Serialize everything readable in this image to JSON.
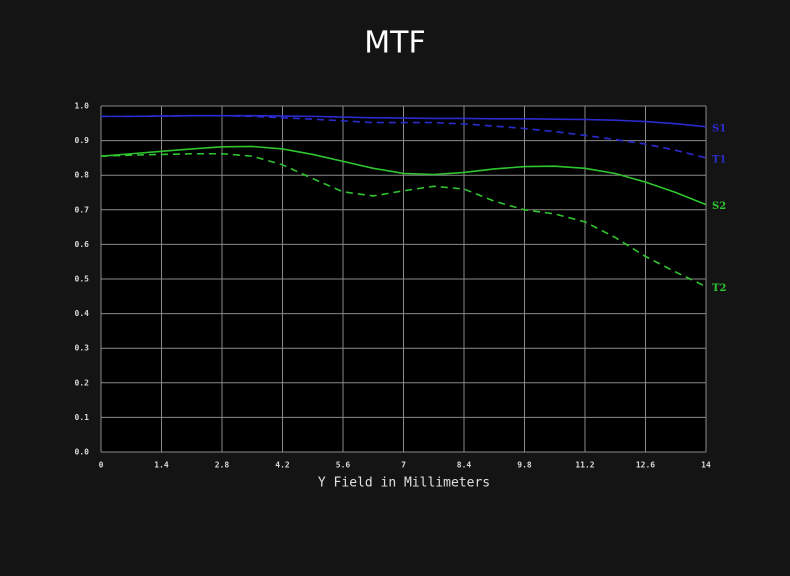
{
  "chart_data": {
    "type": "line",
    "title": "MTF",
    "x_label": "Y Field in Millimeters",
    "x": [
      0,
      0.7,
      1.4,
      2.1,
      2.8,
      3.5,
      4.2,
      4.9,
      5.6,
      6.3,
      7,
      7.7,
      8.4,
      9.1,
      9.8,
      10.5,
      11.2,
      11.9,
      12.6,
      13.3,
      14
    ],
    "xlim": [
      0,
      14
    ],
    "xticks": [
      0,
      1.4,
      2.8,
      4.2,
      5.6,
      7,
      8.4,
      9.8,
      11.2,
      12.6,
      14
    ],
    "ylim": [
      0,
      1
    ],
    "yticks": [
      {
        "value": 0,
        "label": "0.0"
      },
      0.1,
      0.2,
      0.3,
      0.4,
      0.5,
      0.6,
      0.7,
      0.8,
      0.9,
      {
        "value": 1,
        "label": "1.0"
      }
    ],
    "grid": true,
    "series": [
      {
        "name": "S1",
        "color": "#2b2bd0",
        "style": "solid",
        "values": [
          0.97,
          0.97,
          0.971,
          0.972,
          0.972,
          0.972,
          0.971,
          0.97,
          0.968,
          0.966,
          0.965,
          0.964,
          0.964,
          0.963,
          0.963,
          0.962,
          0.961,
          0.959,
          0.955,
          0.949,
          0.94
        ]
      },
      {
        "name": "T1",
        "color": "#2b2bd0",
        "style": "dashed",
        "values": [
          0.97,
          0.97,
          0.971,
          0.972,
          0.972,
          0.97,
          0.966,
          0.962,
          0.957,
          0.952,
          0.952,
          0.952,
          0.948,
          0.942,
          0.935,
          0.926,
          0.915,
          0.903,
          0.89,
          0.872,
          0.85
        ]
      },
      {
        "name": "S2",
        "color": "#2fc42f",
        "style": "solid",
        "values": [
          0.855,
          0.862,
          0.869,
          0.876,
          0.882,
          0.883,
          0.876,
          0.86,
          0.84,
          0.82,
          0.805,
          0.802,
          0.808,
          0.818,
          0.825,
          0.826,
          0.82,
          0.805,
          0.78,
          0.75,
          0.715
        ]
      },
      {
        "name": "T2",
        "color": "#2fc42f",
        "style": "dashed",
        "values": [
          0.855,
          0.858,
          0.86,
          0.862,
          0.862,
          0.855,
          0.83,
          0.79,
          0.752,
          0.74,
          0.755,
          0.768,
          0.76,
          0.725,
          0.7,
          0.688,
          0.665,
          0.62,
          0.565,
          0.52,
          0.478
        ]
      }
    ]
  }
}
